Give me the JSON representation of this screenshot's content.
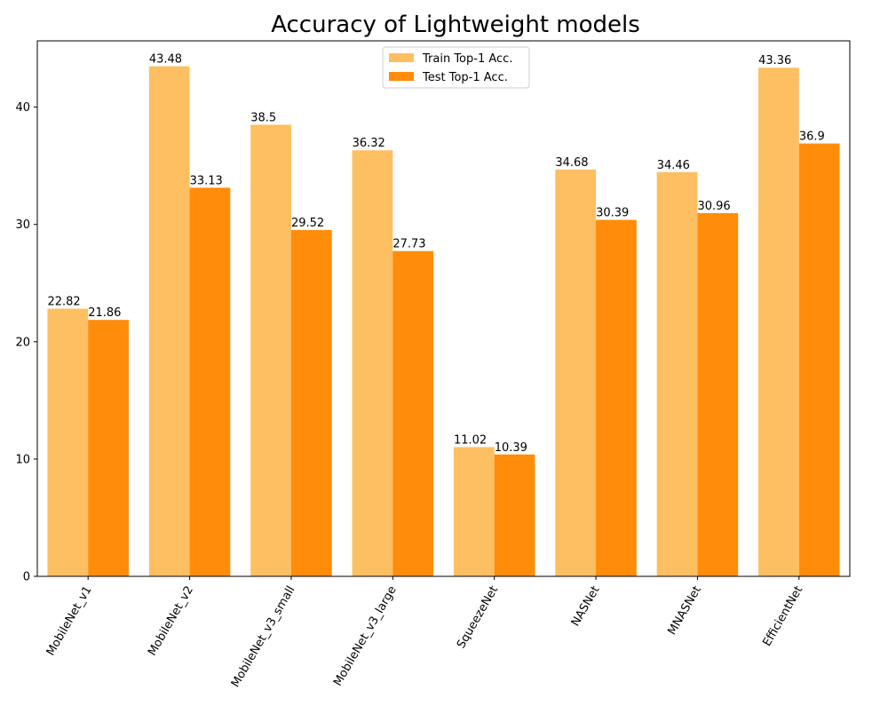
{
  "chart_data": {
    "type": "bar",
    "title": "Accuracy of Lightweight models",
    "xlabel": "",
    "ylabel": "",
    "categories": [
      "MobileNet_v1",
      "MobileNet_v2",
      "MobileNet_v3_small",
      "MobileNet_v3_large",
      "SqueezeNet",
      "NASNet",
      "MNASNet",
      "EfficientNet"
    ],
    "series": [
      {
        "name": "Train Top-1 Acc.",
        "color": "#fdbf62",
        "values": [
          22.82,
          43.48,
          38.5,
          36.32,
          11.02,
          34.68,
          34.46,
          43.36
        ],
        "labels": [
          "22.82",
          "43.48",
          "38.5",
          "36.32",
          "11.02",
          "34.68",
          "34.46",
          "43.36"
        ]
      },
      {
        "name": "Test Top-1 Acc.",
        "color": "#ff8c0a",
        "values": [
          21.86,
          33.13,
          29.52,
          27.73,
          10.39,
          30.39,
          30.96,
          36.9
        ],
        "labels": [
          "21.86",
          "33.13",
          "29.52",
          "27.73",
          "10.39",
          "30.39",
          "30.96",
          "36.9"
        ]
      }
    ],
    "ylim": [
      0,
      45.65
    ],
    "yticks": [
      0,
      10,
      20,
      30,
      40
    ],
    "grid": false,
    "legend_position": "top-center"
  }
}
